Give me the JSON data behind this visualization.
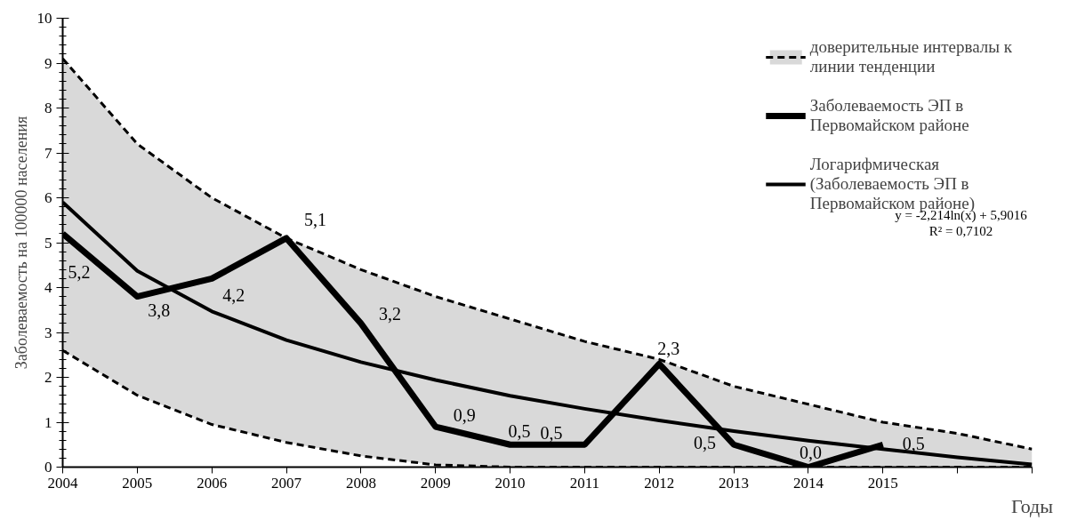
{
  "chart_data": {
    "type": "line",
    "xlabel": "Годы",
    "ylabel": "Заболеваемость на 100000 населения",
    "x": [
      2004,
      2005,
      2006,
      2007,
      2008,
      2009,
      2010,
      2011,
      2012,
      2013,
      2014,
      2015,
      2016,
      2017
    ],
    "xlim": [
      2004,
      2017
    ],
    "ylim": [
      0,
      10
    ],
    "xticks": [
      2004,
      2005,
      2006,
      2007,
      2008,
      2009,
      2010,
      2011,
      2012,
      2013,
      2014,
      2015,
      {
        "value": 2016,
        "label": null
      },
      {
        "value": 2017,
        "label": null
      }
    ],
    "yticks": [
      0,
      1,
      2,
      3,
      4,
      5,
      6,
      7,
      8,
      9,
      10
    ],
    "grid": false,
    "legend": "top right",
    "series": [
      {
        "name": "доверительные интервалы к линии тенденции",
        "color": "#000000",
        "line_style": "dashed",
        "values": [
          9.1,
          7.2,
          6.0,
          5.1,
          4.4,
          3.8,
          3.3,
          2.8,
          2.4,
          1.8,
          1.4,
          1.0,
          0.75,
          0.4
        ],
        "upper": [
          9.1,
          7.2,
          6.0,
          5.1,
          4.4,
          3.8,
          3.3,
          2.8,
          2.4,
          1.8,
          1.4,
          1.0,
          0.75,
          0.4
        ],
        "lower": [
          2.6,
          1.6,
          0.95,
          0.55,
          0.25,
          0.05,
          0,
          0,
          0,
          0,
          0,
          0,
          0,
          0
        ]
      },
      {
        "color": "#000000",
        "line_style": "dashed",
        "values": [
          2.6,
          1.6,
          0.95,
          0.55,
          0.25,
          0.05,
          0,
          0,
          0,
          0,
          0,
          0,
          0,
          0
        ]
      },
      {
        "name": "Заболеваемость ЭП в Первомайском районе",
        "color": "#000000",
        "line_style": "solid",
        "x": [
          2004,
          2005,
          2006,
          2007,
          2008,
          2009,
          2010,
          2011,
          2012,
          2013,
          2014,
          2015
        ],
        "values": [
          5.2,
          3.8,
          4.2,
          5.1,
          3.2,
          0.9,
          0.5,
          0.5,
          2.3,
          0.5,
          0.0,
          0.5
        ],
        "value_labels": [
          "5,2",
          "3,8",
          "4,2",
          "5,1",
          "3,2",
          "0,9",
          "0,5",
          "0,5",
          "2,3",
          "0,5",
          "0,0",
          "0,5"
        ]
      },
      {
        "name": "Логарифмическая (Заболеваемость ЭП в Первомайском районе)",
        "color": "#000000",
        "line_style": "solid",
        "values": [
          5.9,
          4.37,
          3.47,
          2.83,
          2.34,
          1.94,
          1.59,
          1.3,
          1.04,
          0.8,
          0.59,
          0.4,
          0.22,
          0.06
        ]
      }
    ],
    "annotations": [
      "y = -2,214ln(x) + 5,9016",
      "R² = 0,7102"
    ]
  }
}
